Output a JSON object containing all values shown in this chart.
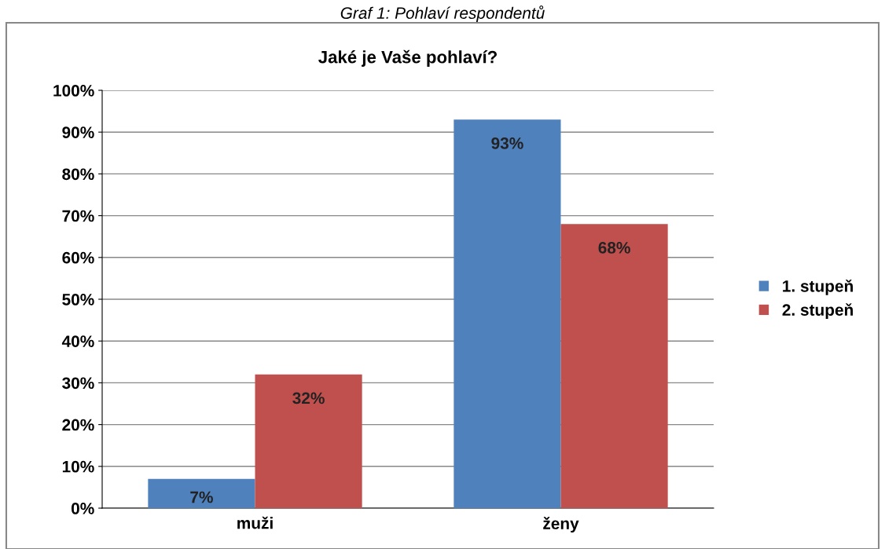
{
  "chart_data": {
    "type": "bar",
    "title": "Jaké je Vaše pohlaví?",
    "annotations": [
      "Graf 1: Pohlaví respondentů"
    ],
    "categories": [
      "muži",
      "ženy"
    ],
    "series": [
      {
        "name": "1. stupeň",
        "color": "#4f81bd",
        "values": [
          7,
          93
        ]
      },
      {
        "name": "2. stupeň",
        "color": "#c0504d",
        "values": [
          32,
          68
        ]
      }
    ],
    "ylim": [
      0,
      100
    ],
    "yticks": [
      {
        "value": 0,
        "label": "0%"
      },
      {
        "value": 10,
        "label": "10%"
      },
      {
        "value": 20,
        "label": "20%"
      },
      {
        "value": 30,
        "label": "30%"
      },
      {
        "value": 40,
        "label": "40%"
      },
      {
        "value": 50,
        "label": "50%"
      },
      {
        "value": 60,
        "label": "60%"
      },
      {
        "value": 70,
        "label": "70%"
      },
      {
        "value": 80,
        "label": "80%"
      },
      {
        "value": 90,
        "label": "90%"
      },
      {
        "value": 100,
        "label": "100%"
      }
    ],
    "value_labels": [
      [
        "7%",
        "93%"
      ],
      [
        "32%",
        "68%"
      ]
    ],
    "grid": "y",
    "legend": "right"
  }
}
